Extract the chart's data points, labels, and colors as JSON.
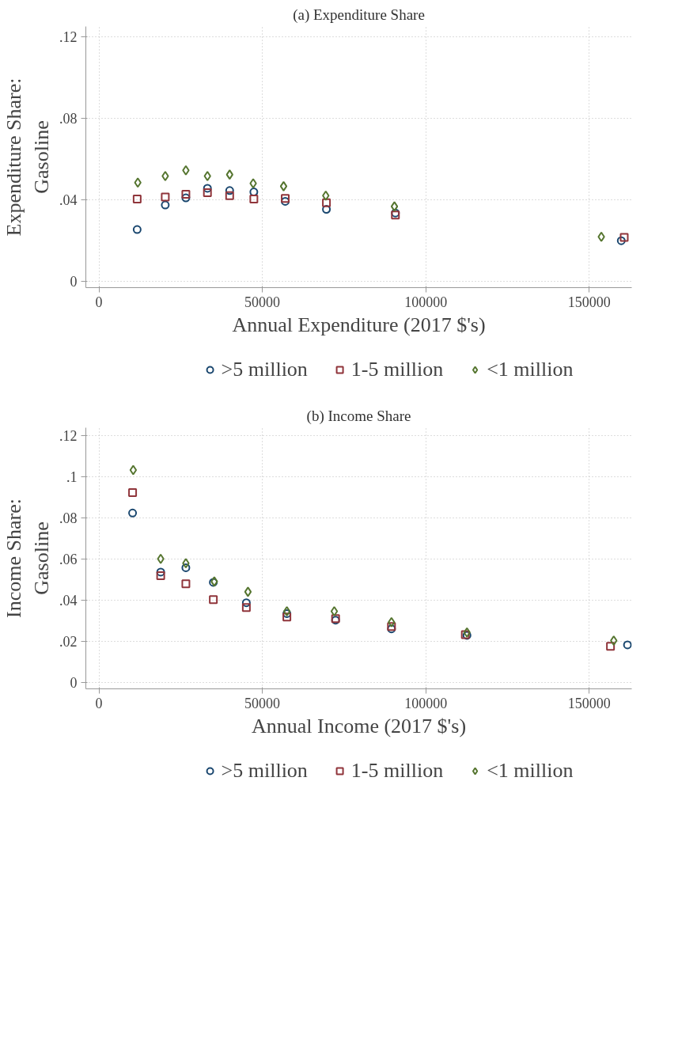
{
  "chart_data": [
    {
      "type": "scatter",
      "title": "(a) Expenditure Share",
      "xlabel": "Annual Expenditure (2017 $'s)",
      "ylabel": "Expenditure Share: Gasoline",
      "xlim": [
        -4000,
        163000
      ],
      "xticks": [
        0,
        50000,
        100000,
        150000
      ],
      "ylim": [
        -0.003,
        0.125
      ],
      "yticks": [
        {
          "value": 0,
          "label": "0"
        },
        {
          "value": 0.04,
          "label": ".04"
        },
        {
          "value": 0.08,
          "label": ".08"
        },
        {
          "value": 0.12,
          "label": ".12"
        }
      ],
      "grid": true,
      "legend": "bottom",
      "series": [
        {
          "name": ">5 million",
          "color": "#1a476f",
          "marker": "circle",
          "x": [
            11700,
            20300,
            26600,
            33200,
            40000,
            47400,
            57000,
            69600,
            90700,
            159800
          ],
          "values": [
            0.0255,
            0.0375,
            0.041,
            0.0457,
            0.0446,
            0.0439,
            0.0393,
            0.0354,
            0.0336,
            0.02
          ]
        },
        {
          "name": "1-5 million",
          "color": "#90353b",
          "marker": "square",
          "x": [
            11700,
            20300,
            26600,
            33200,
            40000,
            47400,
            57000,
            69600,
            90700,
            160700
          ],
          "values": [
            0.0404,
            0.0414,
            0.0428,
            0.0435,
            0.0421,
            0.0404,
            0.0407,
            0.0386,
            0.0326,
            0.0216
          ]
        },
        {
          "name": "<1 million",
          "color": "#55752f",
          "marker": "diamond",
          "x": [
            11900,
            20300,
            26600,
            33200,
            40000,
            47200,
            56500,
            69400,
            90400,
            153700
          ],
          "values": [
            0.0485,
            0.0517,
            0.0545,
            0.0517,
            0.0524,
            0.0481,
            0.0467,
            0.0421,
            0.0368,
            0.0219
          ]
        }
      ]
    },
    {
      "type": "scatter",
      "title": "(b) Income Share",
      "xlabel": "Annual Income (2017 $'s)",
      "ylabel": "Income Share: Gasoline",
      "xlim": [
        -4000,
        163000
      ],
      "xticks": [
        0,
        50000,
        100000,
        150000
      ],
      "ylim": [
        -0.003,
        0.124
      ],
      "yticks": [
        {
          "value": 0,
          "label": "0"
        },
        {
          "value": 0.02,
          "label": ".02"
        },
        {
          "value": 0.04,
          "label": ".04"
        },
        {
          "value": 0.06,
          "label": ".06"
        },
        {
          "value": 0.08,
          "label": ".08"
        },
        {
          "value": 0.1,
          "label": ".1"
        },
        {
          "value": 0.12,
          "label": ".12"
        }
      ],
      "grid": true,
      "legend": "bottom",
      "series": [
        {
          "name": ">5 million",
          "color": "#1a476f",
          "marker": "circle",
          "x": [
            10300,
            18900,
            26600,
            35000,
            45100,
            57500,
            72400,
            89500,
            112600,
            161700
          ],
          "values": [
            0.0825,
            0.0538,
            0.0559,
            0.0488,
            0.0389,
            0.0336,
            0.0304,
            0.0262,
            0.023,
            0.0184
          ]
        },
        {
          "name": "1-5 million",
          "color": "#90353b",
          "marker": "square",
          "x": [
            10300,
            18900,
            26600,
            35000,
            45100,
            57500,
            72400,
            89500,
            112100,
            156500
          ],
          "values": [
            0.0924,
            0.052,
            0.0481,
            0.0404,
            0.0365,
            0.0319,
            0.0312,
            0.0273,
            0.0234,
            0.0177
          ]
        },
        {
          "name": "<1 million",
          "color": "#55752f",
          "marker": "diamond",
          "x": [
            10500,
            18900,
            26600,
            35300,
            45600,
            57500,
            72000,
            89500,
            112600,
            157500
          ],
          "values": [
            0.1034,
            0.0602,
            0.0581,
            0.0492,
            0.0442,
            0.0347,
            0.0347,
            0.0294,
            0.0244,
            0.0205
          ]
        }
      ]
    }
  ]
}
